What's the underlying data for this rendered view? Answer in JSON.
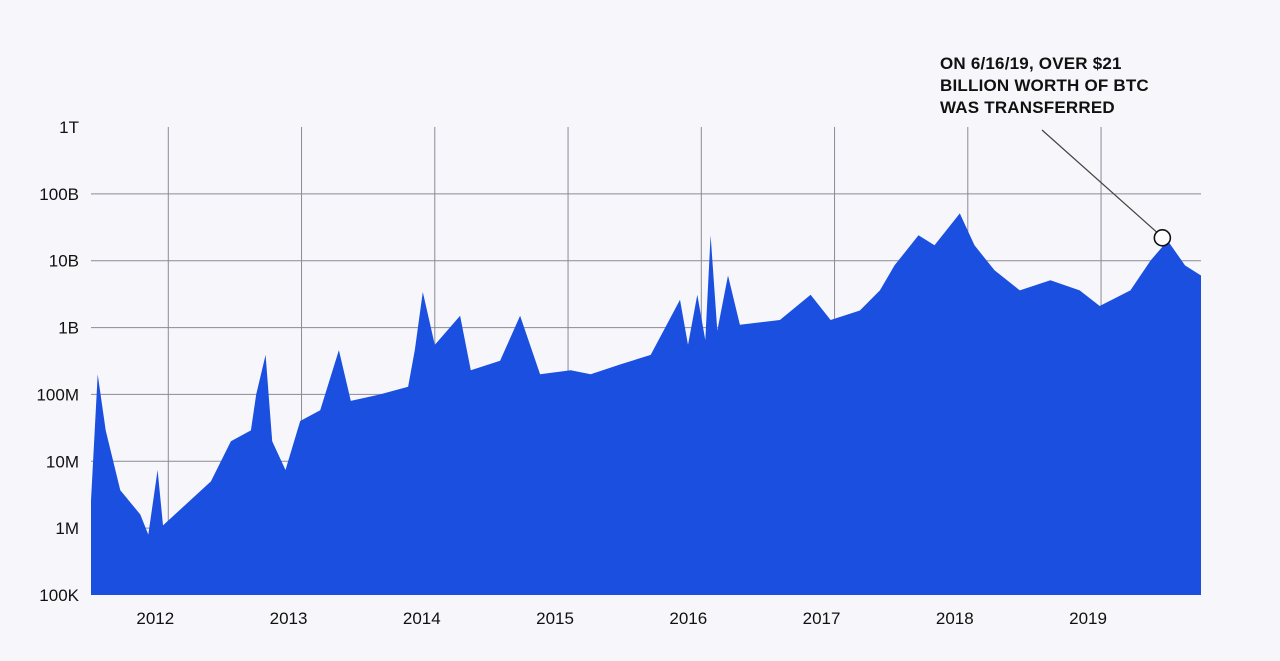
{
  "chart_data": {
    "type": "area",
    "title": "",
    "xlabel": "",
    "ylabel": "",
    "y_scale": "log",
    "ylim": [
      100000,
      1000000000000
    ],
    "xlim": [
      2011.42,
      2019.75
    ],
    "grid": true,
    "color": "#1a4fe0",
    "y_ticks": [
      {
        "value": 1000000000000,
        "label": "1T"
      },
      {
        "value": 100000000000,
        "label": "100B"
      },
      {
        "value": 10000000000,
        "label": "10B"
      },
      {
        "value": 1000000000,
        "label": "1B"
      },
      {
        "value": 100000000,
        "label": "100M"
      },
      {
        "value": 10000000,
        "label": "10M"
      },
      {
        "value": 1000000,
        "label": "1M"
      },
      {
        "value": 100000,
        "label": "100K"
      }
    ],
    "x_ticks": [
      {
        "value": 2012,
        "label": "2012"
      },
      {
        "value": 2013,
        "label": "2013"
      },
      {
        "value": 2014,
        "label": "2014"
      },
      {
        "value": 2015,
        "label": "2015"
      },
      {
        "value": 2016,
        "label": "2016"
      },
      {
        "value": 2017,
        "label": "2017"
      },
      {
        "value": 2018,
        "label": "2018"
      },
      {
        "value": 2019,
        "label": "2019"
      }
    ],
    "x": [
      2011.42,
      2011.47,
      2011.53,
      2011.64,
      2011.79,
      2011.85,
      2011.92,
      2011.96,
      2012.09,
      2012.32,
      2012.47,
      2012.62,
      2012.66,
      2012.73,
      2012.78,
      2012.88,
      2012.99,
      2013.14,
      2013.28,
      2013.37,
      2013.59,
      2013.8,
      2013.85,
      2013.91,
      2014.0,
      2014.19,
      2014.27,
      2014.49,
      2014.64,
      2014.79,
      2015.02,
      2015.17,
      2015.39,
      2015.62,
      2015.84,
      2015.9,
      2015.97,
      2016.03,
      2016.07,
      2016.12,
      2016.2,
      2016.29,
      2016.59,
      2016.82,
      2016.97,
      2017.19,
      2017.34,
      2017.45,
      2017.63,
      2017.75,
      2017.94,
      2018.05,
      2018.2,
      2018.39,
      2018.62,
      2018.84,
      2018.99,
      2019.22,
      2019.37,
      2019.5,
      2019.63,
      2019.75
    ],
    "values": [
      2600000.0,
      200000000.0,
      29000000.0,
      3700000.0,
      1600000.0,
      800000.0,
      7400000.0,
      1100000.0,
      1900000.0,
      5000000.0,
      20000000.0,
      29000000.0,
      100000000.0,
      390000000.0,
      20000000.0,
      7400000.0,
      40000000.0,
      58000000.0,
      460000000.0,
      80000000.0,
      100000000.0,
      130000000.0,
      460000000.0,
      3400000000.0,
      550000000.0,
      1500000000.0,
      230000000.0,
      320000000.0,
      1500000000.0,
      200000000.0,
      230000000.0,
      200000000.0,
      280000000.0,
      390000000.0,
      2600000000.0,
      550000000.0,
      3100000000.0,
      650000000.0,
      24000000000.0,
      900000000.0,
      6000000000.0,
      1100000000.0,
      1300000000.0,
      3100000000.0,
      1300000000.0,
      1800000000.0,
      3600000000.0,
      8500000000.0,
      24000000000.0,
      17000000000.0,
      51000000000.0,
      17000000000.0,
      7200000000.0,
      3600000000.0,
      5100000000.0,
      3600000000.0,
      2100000000.0,
      3600000000.0,
      10000000000.0,
      20000000000.0,
      8500000000.0,
      6000000000.0
    ],
    "annotation": {
      "x": 2019.46,
      "value": 22000000000.0,
      "lines": [
        "ON 6/16/19, OVER $21",
        "BILLION WORTH OF BTC",
        "WAS TRANSFERRED"
      ]
    }
  }
}
